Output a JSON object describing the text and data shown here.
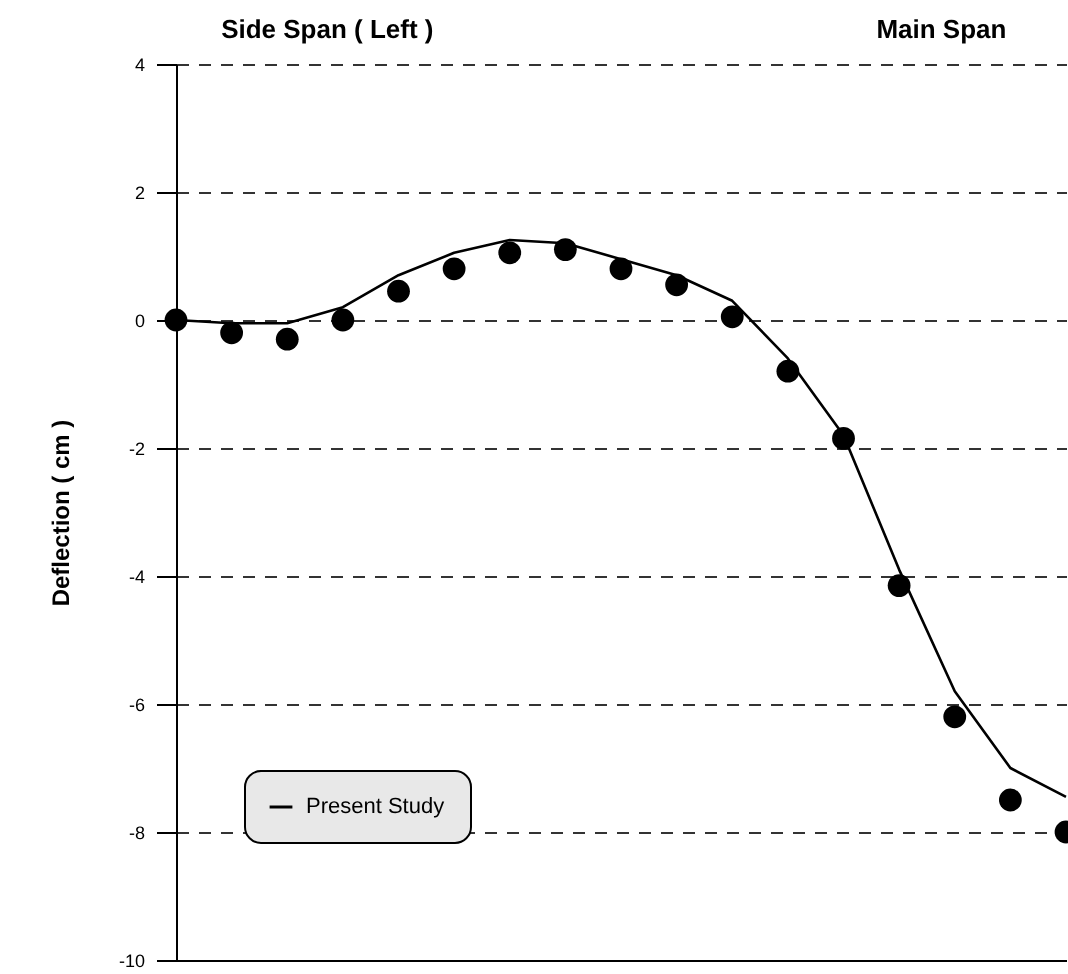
{
  "chart_data": {
    "type": "line",
    "ylabel": "Deflection ( cm )",
    "annotations": [
      "Side Span ( Left )",
      "Main Span"
    ],
    "categories": [
      null,
      null,
      null,
      null,
      null,
      null,
      null,
      null,
      null,
      null,
      null,
      null,
      null,
      null,
      null,
      null,
      null
    ],
    "ylim": [
      -10,
      4
    ],
    "yticks": [
      -10,
      -8,
      -6,
      -4,
      -2,
      0,
      2,
      4
    ],
    "tick_labels": "y",
    "grid": "y",
    "legend": "bottom left",
    "series": [
      {
        "name": "Present Study",
        "marker": "none",
        "color": "#000000",
        "values": [
          0,
          -0.05,
          -0.05,
          0.2,
          0.7,
          1.05,
          1.25,
          1.2,
          0.95,
          0.7,
          0.3,
          -0.6,
          -1.8,
          -3.9,
          -5.8,
          -7.0,
          -7.45
        ]
      },
      {
        "type": "scatter",
        "marker": "circle",
        "color": "#000000",
        "values": [
          0,
          -0.2,
          -0.3,
          0,
          0.45,
          0.8,
          1.05,
          1.1,
          0.8,
          0.55,
          0.05,
          -0.8,
          -1.85,
          -4.15,
          -6.2,
          -7.5,
          -8.0
        ]
      }
    ]
  }
}
